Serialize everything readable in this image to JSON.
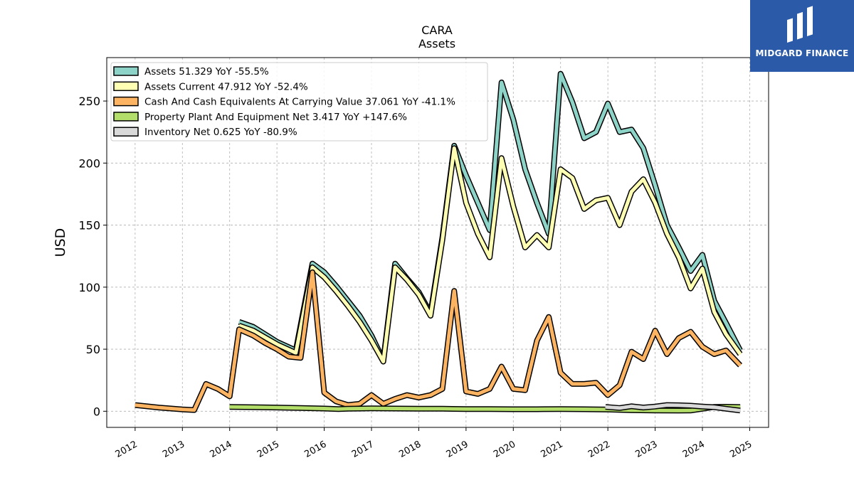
{
  "brand": {
    "name": "MIDGARD FINANCE",
    "logo_icon": "midgard-mi-monogram-icon",
    "background": "#2a5aa8"
  },
  "chart_data": {
    "type": "line",
    "title": "CARA",
    "subtitle": "Assets",
    "xlabel": "",
    "ylabel": "USD",
    "xlim": [
      2011.4,
      2025.4
    ],
    "ylim": [
      -13,
      285
    ],
    "x_ticks": [
      "2012",
      "2013",
      "2014",
      "2015",
      "2016",
      "2017",
      "2018",
      "2019",
      "2020",
      "2021",
      "2022",
      "2023",
      "2024",
      "2025"
    ],
    "y_ticks": [
      "0",
      "50",
      "100",
      "150",
      "200",
      "250"
    ],
    "grid": true,
    "legend_position": "top-left",
    "series": [
      {
        "name": "Assets",
        "legend_label": "Assets  51.329 YoY -55.5%",
        "color": "#8dd3c7",
        "points": [
          [
            2014.2,
            72
          ],
          [
            2014.5,
            68
          ],
          [
            2015.0,
            56
          ],
          [
            2015.4,
            49
          ],
          [
            2015.75,
            119
          ],
          [
            2016.0,
            112
          ],
          [
            2016.25,
            101
          ],
          [
            2016.5,
            89
          ],
          [
            2016.75,
            77
          ],
          [
            2017.0,
            61
          ],
          [
            2017.25,
            41
          ],
          [
            2017.5,
            119
          ],
          [
            2017.75,
            107
          ],
          [
            2018.0,
            96
          ],
          [
            2018.25,
            79
          ],
          [
            2018.5,
            140
          ],
          [
            2018.75,
            214
          ],
          [
            2019.0,
            190
          ],
          [
            2019.25,
            168
          ],
          [
            2019.5,
            146
          ],
          [
            2019.75,
            265
          ],
          [
            2020.0,
            235
          ],
          [
            2020.25,
            195
          ],
          [
            2020.5,
            168
          ],
          [
            2020.75,
            143
          ],
          [
            2021.0,
            272
          ],
          [
            2021.25,
            249
          ],
          [
            2021.5,
            220
          ],
          [
            2021.75,
            225
          ],
          [
            2022.0,
            248
          ],
          [
            2022.25,
            225
          ],
          [
            2022.5,
            227
          ],
          [
            2022.75,
            212
          ],
          [
            2023.0,
            182
          ],
          [
            2023.25,
            150
          ],
          [
            2023.5,
            132
          ],
          [
            2023.75,
            113
          ],
          [
            2024.0,
            126
          ],
          [
            2024.25,
            89
          ],
          [
            2024.5,
            71
          ],
          [
            2024.8,
            49
          ]
        ]
      },
      {
        "name": "Assets Current",
        "legend_label": "Assets Current  47.912 YoY -52.4%",
        "color": "#ffffb3",
        "points": [
          [
            2014.2,
            69
          ],
          [
            2014.5,
            65
          ],
          [
            2015.0,
            54
          ],
          [
            2015.4,
            47
          ],
          [
            2015.75,
            116
          ],
          [
            2016.0,
            108
          ],
          [
            2016.25,
            97
          ],
          [
            2016.5,
            85
          ],
          [
            2016.75,
            72
          ],
          [
            2017.0,
            57
          ],
          [
            2017.25,
            40
          ],
          [
            2017.5,
            116
          ],
          [
            2017.75,
            106
          ],
          [
            2018.0,
            94
          ],
          [
            2018.25,
            77
          ],
          [
            2018.5,
            138
          ],
          [
            2018.75,
            212
          ],
          [
            2019.0,
            168
          ],
          [
            2019.25,
            143
          ],
          [
            2019.5,
            124
          ],
          [
            2019.75,
            204
          ],
          [
            2020.0,
            165
          ],
          [
            2020.25,
            132
          ],
          [
            2020.5,
            142
          ],
          [
            2020.75,
            132
          ],
          [
            2021.0,
            195
          ],
          [
            2021.25,
            188
          ],
          [
            2021.5,
            163
          ],
          [
            2021.75,
            170
          ],
          [
            2022.0,
            172
          ],
          [
            2022.25,
            150
          ],
          [
            2022.5,
            177
          ],
          [
            2022.75,
            187
          ],
          [
            2023.0,
            168
          ],
          [
            2023.25,
            143
          ],
          [
            2023.5,
            124
          ],
          [
            2023.75,
            99
          ],
          [
            2024.0,
            115
          ],
          [
            2024.25,
            80
          ],
          [
            2024.5,
            62
          ],
          [
            2024.8,
            46
          ]
        ]
      },
      {
        "name": "Cash And Cash Equivalents At Carrying Value",
        "legend_label": "Cash And Cash Equivalents At Carrying Value  37.061 YoY -41.1%",
        "color": "#fdb462",
        "points": [
          [
            2012.0,
            5
          ],
          [
            2012.5,
            3
          ],
          [
            2013.0,
            1.5
          ],
          [
            2013.25,
            1
          ],
          [
            2013.5,
            22
          ],
          [
            2013.75,
            18
          ],
          [
            2014.0,
            12
          ],
          [
            2014.2,
            66
          ],
          [
            2014.5,
            61
          ],
          [
            2014.75,
            55
          ],
          [
            2015.0,
            50
          ],
          [
            2015.25,
            44
          ],
          [
            2015.5,
            43
          ],
          [
            2015.75,
            112
          ],
          [
            2016.0,
            15
          ],
          [
            2016.25,
            8
          ],
          [
            2016.5,
            5
          ],
          [
            2016.75,
            6
          ],
          [
            2017.0,
            13
          ],
          [
            2017.25,
            6
          ],
          [
            2017.5,
            10
          ],
          [
            2017.75,
            13
          ],
          [
            2018.0,
            11
          ],
          [
            2018.25,
            13
          ],
          [
            2018.5,
            18
          ],
          [
            2018.75,
            97
          ],
          [
            2019.0,
            16
          ],
          [
            2019.25,
            14
          ],
          [
            2019.5,
            18
          ],
          [
            2019.75,
            36
          ],
          [
            2020.0,
            18
          ],
          [
            2020.25,
            17
          ],
          [
            2020.5,
            57
          ],
          [
            2020.75,
            76
          ],
          [
            2021.0,
            31
          ],
          [
            2021.25,
            22
          ],
          [
            2021.5,
            22
          ],
          [
            2021.75,
            23
          ],
          [
            2022.0,
            13
          ],
          [
            2022.25,
            21
          ],
          [
            2022.5,
            48
          ],
          [
            2022.75,
            42
          ],
          [
            2023.0,
            65
          ],
          [
            2023.25,
            46
          ],
          [
            2023.5,
            59
          ],
          [
            2023.75,
            64
          ],
          [
            2024.0,
            52
          ],
          [
            2024.25,
            46
          ],
          [
            2024.5,
            49
          ],
          [
            2024.8,
            37
          ]
        ]
      },
      {
        "name": "Property Plant And Equipment Net",
        "legend_label": "Property Plant And Equipment Net  3.417 YoY +147.6%",
        "color": "#b3de69",
        "points": [
          [
            2014.0,
            3.5
          ],
          [
            2014.5,
            3.3
          ],
          [
            2015.0,
            3
          ],
          [
            2015.5,
            2.6
          ],
          [
            2016.0,
            2.2
          ],
          [
            2016.3,
            1.8
          ],
          [
            2016.5,
            2
          ],
          [
            2017.0,
            2.3
          ],
          [
            2017.5,
            2.2
          ],
          [
            2018.0,
            2.1
          ],
          [
            2018.5,
            2
          ],
          [
            2019.0,
            1.8
          ],
          [
            2019.5,
            1.7
          ],
          [
            2020.0,
            1.6
          ],
          [
            2020.5,
            1.6
          ],
          [
            2021.0,
            1.8
          ],
          [
            2021.5,
            1.6
          ],
          [
            2022.0,
            1.4
          ],
          [
            2022.5,
            0.8
          ],
          [
            2023.0,
            0.6
          ],
          [
            2023.5,
            0.5
          ],
          [
            2023.75,
            0.6
          ],
          [
            2024.0,
            2
          ],
          [
            2024.25,
            3.5
          ],
          [
            2024.5,
            3.6
          ],
          [
            2024.8,
            3.4
          ]
        ]
      },
      {
        "name": "Inventory Net",
        "legend_label": "Inventory Net  0.625 YoY -80.9%",
        "color": "#d9d9d9",
        "points": [
          [
            2021.95,
            3.5
          ],
          [
            2022.25,
            2.6
          ],
          [
            2022.5,
            4
          ],
          [
            2022.75,
            3
          ],
          [
            2023.0,
            3.8
          ],
          [
            2023.25,
            5
          ],
          [
            2023.5,
            4.8
          ],
          [
            2023.75,
            4.5
          ],
          [
            2024.0,
            3.8
          ],
          [
            2024.25,
            3.3
          ],
          [
            2024.5,
            2
          ],
          [
            2024.8,
            0.6
          ]
        ]
      }
    ]
  }
}
